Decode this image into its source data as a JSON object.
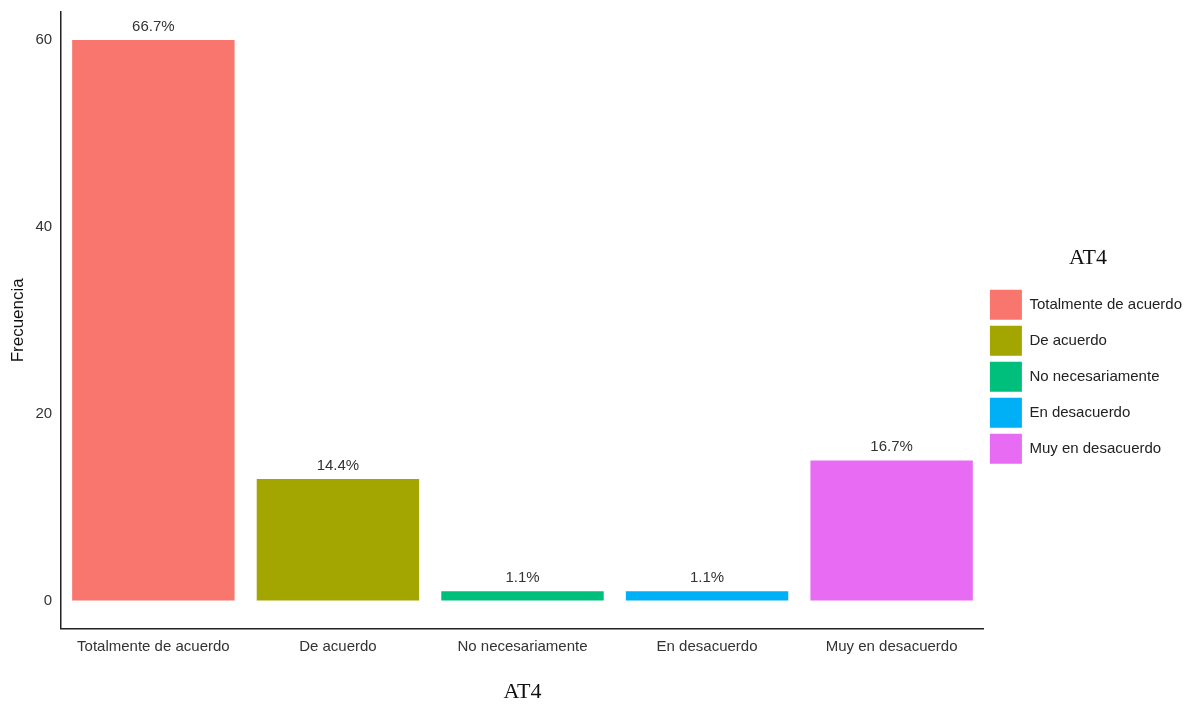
{
  "chart_data": {
    "type": "bar",
    "xlabel": "AT4",
    "ylabel": "Frecuencia",
    "legend_title": "AT4",
    "legend": "right",
    "grid": false,
    "stacked": true,
    "categories": [
      "Totalmente de acuerdo",
      "De acuerdo",
      "No necesariamente",
      "En desacuerdo",
      "Muy en desacuerdo"
    ],
    "series": [
      {
        "name": "Totalmente de acuerdo",
        "color": "#f8766d",
        "values": [
          60,
          null,
          null,
          null,
          null
        ]
      },
      {
        "name": "De acuerdo",
        "color": "#a3a500",
        "values": [
          null,
          13,
          null,
          null,
          null
        ]
      },
      {
        "name": "No necesariamente",
        "color": "#00bf7d",
        "values": [
          null,
          null,
          1,
          null,
          null
        ]
      },
      {
        "name": "En desacuerdo",
        "color": "#00b0f6",
        "values": [
          null,
          null,
          null,
          1,
          null
        ]
      },
      {
        "name": "Muy en desacuerdo",
        "color": "#e76bf3",
        "values": [
          null,
          null,
          null,
          null,
          15
        ]
      }
    ],
    "annotations": [
      {
        "text": "66.7%",
        "x": "Totalmente de acuerdo",
        "y": 60
      },
      {
        "text": "14.4%",
        "x": "De acuerdo",
        "y": 13
      },
      {
        "text": "1.1%",
        "x": "No necesariamente",
        "y": 1
      },
      {
        "text": "1.1%",
        "x": "En desacuerdo",
        "y": 1
      },
      {
        "text": "16.7%",
        "x": "Muy en desacuerdo",
        "y": 15
      }
    ],
    "ylim": [
      -3,
      63
    ],
    "yticks": [
      0,
      20,
      40,
      60
    ]
  }
}
